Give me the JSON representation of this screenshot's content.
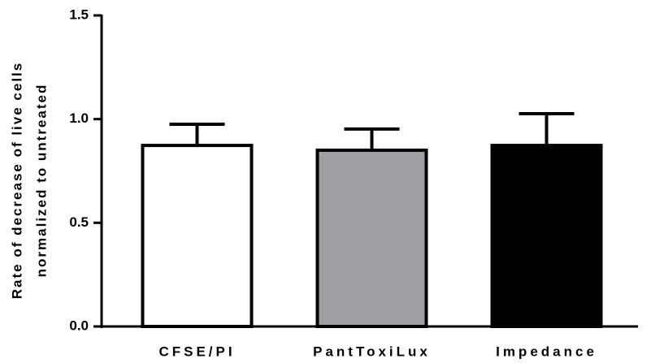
{
  "chart_data": {
    "type": "bar",
    "y_label": [
      "Rate of decrease of live cells",
      "normalized to untreated"
    ],
    "categories": [
      "CFSE/PI",
      "PantToxiLux",
      "Impedance"
    ],
    "values": [
      0.873,
      0.85,
      0.873
    ],
    "errors": [
      0.102,
      0.102,
      0.153
    ],
    "colors": [
      "#ffffff",
      "#a0a0a4",
      "#000000"
    ],
    "ylim": [
      0,
      1.5
    ],
    "yticks": [
      {
        "value": 0,
        "label": "0.0"
      },
      {
        "value": 0.5,
        "label": "0.5"
      },
      {
        "value": 1,
        "label": "1.0"
      },
      {
        "value": 1.5,
        "label": "1.5"
      }
    ]
  }
}
